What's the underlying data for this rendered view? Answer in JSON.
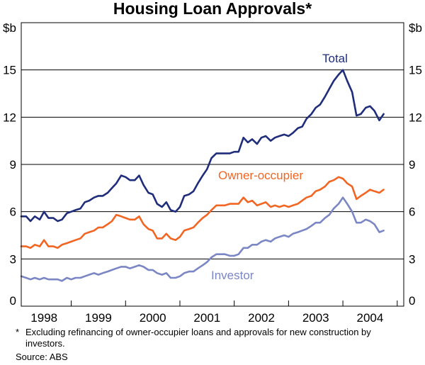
{
  "chart_data": {
    "type": "line",
    "title": "Housing Loan Approvals*",
    "ylabel_left": "$b",
    "ylabel_right": "$b",
    "ylim": [
      0,
      18
    ],
    "yticks": [
      0,
      3,
      6,
      9,
      12,
      15
    ],
    "xlim": [
      1997.58,
      2004.62
    ],
    "x_tick_labels": [
      "1998",
      "1999",
      "2000",
      "2001",
      "2002",
      "2003",
      "2004"
    ],
    "grid": true,
    "series": [
      {
        "name": "Total",
        "color": "#1f2d7a",
        "points": [
          [
            1997.58,
            5.7
          ],
          [
            1997.67,
            5.7
          ],
          [
            1997.75,
            5.4
          ],
          [
            1997.83,
            5.7
          ],
          [
            1997.92,
            5.5
          ],
          [
            1998.0,
            6.0
          ],
          [
            1998.08,
            5.6
          ],
          [
            1998.17,
            5.6
          ],
          [
            1998.25,
            5.4
          ],
          [
            1998.33,
            5.5
          ],
          [
            1998.42,
            5.9
          ],
          [
            1998.5,
            6.0
          ],
          [
            1998.58,
            6.1
          ],
          [
            1998.67,
            6.2
          ],
          [
            1998.75,
            6.6
          ],
          [
            1998.83,
            6.7
          ],
          [
            1998.92,
            6.9
          ],
          [
            1999.0,
            7.0
          ],
          [
            1999.08,
            7.0
          ],
          [
            1999.17,
            7.2
          ],
          [
            1999.25,
            7.5
          ],
          [
            1999.33,
            7.8
          ],
          [
            1999.42,
            8.3
          ],
          [
            1999.5,
            8.2
          ],
          [
            1999.58,
            8.0
          ],
          [
            1999.67,
            8.0
          ],
          [
            1999.75,
            8.3
          ],
          [
            1999.83,
            7.7
          ],
          [
            1999.92,
            7.2
          ],
          [
            2000.0,
            7.1
          ],
          [
            2000.08,
            6.5
          ],
          [
            2000.17,
            6.3
          ],
          [
            2000.25,
            6.6
          ],
          [
            2000.33,
            6.1
          ],
          [
            2000.42,
            6.0
          ],
          [
            2000.5,
            6.3
          ],
          [
            2000.58,
            7.0
          ],
          [
            2000.67,
            7.1
          ],
          [
            2000.75,
            7.3
          ],
          [
            2000.83,
            7.8
          ],
          [
            2000.92,
            8.3
          ],
          [
            2001.0,
            8.7
          ],
          [
            2001.08,
            9.4
          ],
          [
            2001.17,
            9.7
          ],
          [
            2001.25,
            9.7
          ],
          [
            2001.33,
            9.7
          ],
          [
            2001.42,
            9.7
          ],
          [
            2001.5,
            9.8
          ],
          [
            2001.58,
            9.8
          ],
          [
            2001.67,
            10.7
          ],
          [
            2001.75,
            10.4
          ],
          [
            2001.83,
            10.6
          ],
          [
            2001.92,
            10.3
          ],
          [
            2002.0,
            10.7
          ],
          [
            2002.08,
            10.8
          ],
          [
            2002.17,
            10.5
          ],
          [
            2002.25,
            10.7
          ],
          [
            2002.33,
            10.8
          ],
          [
            2002.42,
            10.9
          ],
          [
            2002.5,
            10.8
          ],
          [
            2002.58,
            11.0
          ],
          [
            2002.67,
            11.3
          ],
          [
            2002.75,
            11.4
          ],
          [
            2002.83,
            11.9
          ],
          [
            2002.92,
            12.2
          ],
          [
            2003.0,
            12.6
          ],
          [
            2003.08,
            12.8
          ],
          [
            2003.17,
            13.3
          ],
          [
            2003.25,
            13.8
          ],
          [
            2003.33,
            14.3
          ],
          [
            2003.42,
            14.7
          ],
          [
            2003.5,
            15.0
          ],
          [
            2003.58,
            14.3
          ],
          [
            2003.67,
            13.6
          ],
          [
            2003.75,
            12.1
          ],
          [
            2003.83,
            12.2
          ],
          [
            2003.92,
            12.6
          ],
          [
            2004.0,
            12.7
          ],
          [
            2004.08,
            12.4
          ],
          [
            2004.17,
            11.8
          ],
          [
            2004.25,
            12.2
          ]
        ]
      },
      {
        "name": "Owner-occupier",
        "color": "#f26522",
        "points": [
          [
            1997.58,
            3.8
          ],
          [
            1997.67,
            3.8
          ],
          [
            1997.75,
            3.7
          ],
          [
            1997.83,
            3.9
          ],
          [
            1997.92,
            3.8
          ],
          [
            1998.0,
            4.2
          ],
          [
            1998.08,
            3.8
          ],
          [
            1998.17,
            3.8
          ],
          [
            1998.25,
            3.7
          ],
          [
            1998.33,
            3.9
          ],
          [
            1998.42,
            4.0
          ],
          [
            1998.5,
            4.1
          ],
          [
            1998.58,
            4.2
          ],
          [
            1998.67,
            4.3
          ],
          [
            1998.75,
            4.6
          ],
          [
            1998.83,
            4.7
          ],
          [
            1998.92,
            4.8
          ],
          [
            1999.0,
            5.0
          ],
          [
            1999.08,
            5.0
          ],
          [
            1999.17,
            5.2
          ],
          [
            1999.25,
            5.4
          ],
          [
            1999.33,
            5.8
          ],
          [
            1999.42,
            5.7
          ],
          [
            1999.5,
            5.6
          ],
          [
            1999.58,
            5.5
          ],
          [
            1999.67,
            5.5
          ],
          [
            1999.75,
            5.7
          ],
          [
            1999.83,
            5.2
          ],
          [
            1999.92,
            4.9
          ],
          [
            2000.0,
            4.8
          ],
          [
            2000.08,
            4.3
          ],
          [
            2000.17,
            4.3
          ],
          [
            2000.25,
            4.6
          ],
          [
            2000.33,
            4.3
          ],
          [
            2000.42,
            4.2
          ],
          [
            2000.5,
            4.4
          ],
          [
            2000.58,
            4.8
          ],
          [
            2000.67,
            4.9
          ],
          [
            2000.75,
            5.0
          ],
          [
            2000.83,
            5.3
          ],
          [
            2000.92,
            5.6
          ],
          [
            2001.0,
            5.8
          ],
          [
            2001.08,
            6.1
          ],
          [
            2001.17,
            6.4
          ],
          [
            2001.25,
            6.4
          ],
          [
            2001.33,
            6.4
          ],
          [
            2001.42,
            6.5
          ],
          [
            2001.5,
            6.5
          ],
          [
            2001.58,
            6.5
          ],
          [
            2001.67,
            6.9
          ],
          [
            2001.75,
            6.6
          ],
          [
            2001.83,
            6.7
          ],
          [
            2001.92,
            6.4
          ],
          [
            2002.0,
            6.5
          ],
          [
            2002.08,
            6.6
          ],
          [
            2002.17,
            6.3
          ],
          [
            2002.25,
            6.4
          ],
          [
            2002.33,
            6.3
          ],
          [
            2002.42,
            6.4
          ],
          [
            2002.5,
            6.3
          ],
          [
            2002.58,
            6.4
          ],
          [
            2002.67,
            6.5
          ],
          [
            2002.75,
            6.7
          ],
          [
            2002.83,
            6.9
          ],
          [
            2002.92,
            7.0
          ],
          [
            2003.0,
            7.3
          ],
          [
            2003.08,
            7.4
          ],
          [
            2003.17,
            7.6
          ],
          [
            2003.25,
            7.9
          ],
          [
            2003.33,
            8.0
          ],
          [
            2003.42,
            8.2
          ],
          [
            2003.5,
            8.1
          ],
          [
            2003.58,
            7.8
          ],
          [
            2003.67,
            7.6
          ],
          [
            2003.75,
            6.8
          ],
          [
            2003.83,
            7.0
          ],
          [
            2003.92,
            7.2
          ],
          [
            2004.0,
            7.4
          ],
          [
            2004.08,
            7.3
          ],
          [
            2004.17,
            7.2
          ],
          [
            2004.25,
            7.4
          ]
        ]
      },
      {
        "name": "Investor",
        "color": "#7b86c4",
        "points": [
          [
            1997.58,
            1.9
          ],
          [
            1997.67,
            1.8
          ],
          [
            1997.75,
            1.7
          ],
          [
            1997.83,
            1.8
          ],
          [
            1997.92,
            1.7
          ],
          [
            1998.0,
            1.8
          ],
          [
            1998.08,
            1.7
          ],
          [
            1998.17,
            1.7
          ],
          [
            1998.25,
            1.7
          ],
          [
            1998.33,
            1.6
          ],
          [
            1998.42,
            1.8
          ],
          [
            1998.5,
            1.7
          ],
          [
            1998.58,
            1.8
          ],
          [
            1998.67,
            1.8
          ],
          [
            1998.75,
            1.9
          ],
          [
            1998.83,
            2.0
          ],
          [
            1998.92,
            2.1
          ],
          [
            1999.0,
            2.0
          ],
          [
            1999.08,
            2.1
          ],
          [
            1999.17,
            2.2
          ],
          [
            1999.25,
            2.3
          ],
          [
            1999.33,
            2.4
          ],
          [
            1999.42,
            2.5
          ],
          [
            1999.5,
            2.5
          ],
          [
            1999.58,
            2.4
          ],
          [
            1999.67,
            2.5
          ],
          [
            1999.75,
            2.6
          ],
          [
            1999.83,
            2.5
          ],
          [
            1999.92,
            2.3
          ],
          [
            2000.0,
            2.3
          ],
          [
            2000.08,
            2.1
          ],
          [
            2000.17,
            2.0
          ],
          [
            2000.25,
            2.1
          ],
          [
            2000.33,
            1.8
          ],
          [
            2000.42,
            1.8
          ],
          [
            2000.5,
            1.9
          ],
          [
            2000.58,
            2.1
          ],
          [
            2000.67,
            2.2
          ],
          [
            2000.75,
            2.2
          ],
          [
            2000.83,
            2.4
          ],
          [
            2000.92,
            2.6
          ],
          [
            2001.0,
            2.8
          ],
          [
            2001.08,
            3.1
          ],
          [
            2001.17,
            3.3
          ],
          [
            2001.25,
            3.3
          ],
          [
            2001.33,
            3.3
          ],
          [
            2001.42,
            3.2
          ],
          [
            2001.5,
            3.2
          ],
          [
            2001.58,
            3.3
          ],
          [
            2001.67,
            3.7
          ],
          [
            2001.75,
            3.7
          ],
          [
            2001.83,
            3.9
          ],
          [
            2001.92,
            3.9
          ],
          [
            2002.0,
            4.1
          ],
          [
            2002.08,
            4.2
          ],
          [
            2002.17,
            4.1
          ],
          [
            2002.25,
            4.3
          ],
          [
            2002.33,
            4.4
          ],
          [
            2002.42,
            4.5
          ],
          [
            2002.5,
            4.4
          ],
          [
            2002.58,
            4.6
          ],
          [
            2002.67,
            4.7
          ],
          [
            2002.75,
            4.8
          ],
          [
            2002.83,
            4.9
          ],
          [
            2002.92,
            5.1
          ],
          [
            2003.0,
            5.3
          ],
          [
            2003.08,
            5.3
          ],
          [
            2003.17,
            5.6
          ],
          [
            2003.25,
            5.8
          ],
          [
            2003.33,
            6.2
          ],
          [
            2003.42,
            6.5
          ],
          [
            2003.5,
            6.9
          ],
          [
            2003.58,
            6.5
          ],
          [
            2003.67,
            6.0
          ],
          [
            2003.75,
            5.3
          ],
          [
            2003.83,
            5.3
          ],
          [
            2003.92,
            5.5
          ],
          [
            2004.0,
            5.4
          ],
          [
            2004.08,
            5.2
          ],
          [
            2004.17,
            4.7
          ],
          [
            2004.25,
            4.8
          ]
        ]
      }
    ]
  },
  "footnote_mark": "*",
  "footnote_text": "Excluding refinancing of owner-occupier loans and approvals for new construction by investors.",
  "source": "Source: ABS"
}
